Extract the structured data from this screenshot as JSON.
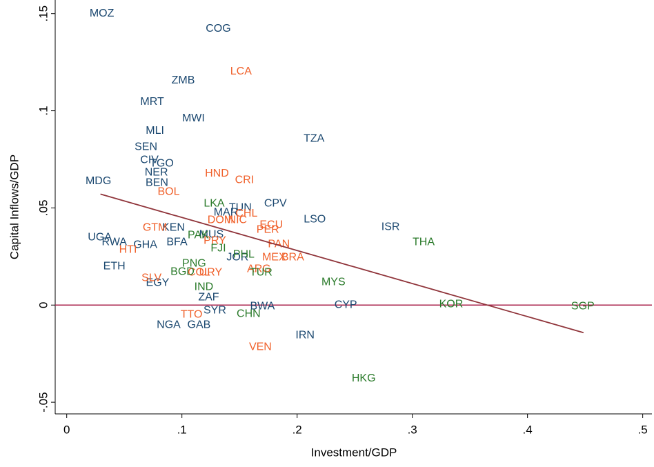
{
  "chart_data": {
    "type": "scatter",
    "x_label": "Investment/GDP",
    "y_label": "Capital Inflows/GDP",
    "xlim": [
      -0.01,
      0.508
    ],
    "ylim": [
      -0.056,
      0.157
    ],
    "xticks": [
      0,
      {
        "value": 0.1,
        "label": ".1"
      },
      {
        "value": 0.2,
        "label": ".2"
      },
      {
        "value": 0.3,
        "label": ".3"
      },
      {
        "value": 0.4,
        "label": ".4"
      },
      {
        "value": 0.5,
        "label": ".5"
      }
    ],
    "yticks": [
      {
        "value": -0.05,
        "label": "-.05"
      },
      0,
      {
        "value": 0.05,
        "label": ".05"
      },
      {
        "value": 0.1,
        "label": ".1"
      },
      {
        "value": 0.15,
        "label": ".15"
      }
    ],
    "series": [
      {
        "color": "#1a476f",
        "labels": [
          "MOZ",
          "COG",
          "ZMB",
          "MRT",
          "MWI",
          "MLI",
          "TZA",
          "SEN",
          "CIV",
          "TGO",
          "NER",
          "BEN",
          "MDG",
          "CPV",
          "MAR",
          "TUN",
          "LSO",
          "ISR",
          "KEN",
          "MUS",
          "UGA",
          "RWA",
          "GHA",
          "BFA",
          "JOR",
          "ETH",
          "EGY",
          "ZAF",
          "BWA",
          "CYP",
          "SYR",
          "NGA",
          "GAB",
          "IRN"
        ],
        "x": [
          0.0305,
          0.1316,
          0.1011,
          0.0742,
          0.11,
          0.0766,
          0.2147,
          0.0688,
          0.0718,
          0.0825,
          0.0778,
          0.0783,
          0.0275,
          0.1812,
          0.1382,
          0.1507,
          0.2153,
          0.2811,
          0.0927,
          0.1256,
          0.0287,
          0.0413,
          0.0682,
          0.0957,
          0.1483,
          0.0413,
          0.0789,
          0.1232,
          0.1699,
          0.2422,
          0.1286,
          0.0885,
          0.1148,
          0.2069
        ],
        "y": [
          0.15,
          0.1422,
          0.1156,
          0.1046,
          0.0961,
          0.0897,
          0.0855,
          0.0812,
          0.0745,
          0.0727,
          0.0681,
          0.0628,
          0.0638,
          0.0521,
          0.0475,
          0.05,
          0.044,
          0.0401,
          0.0397,
          0.0362,
          0.0348,
          0.0323,
          0.0309,
          0.0323,
          0.0245,
          0.0199,
          0.0113,
          0.0039,
          -0.0007,
          0,
          -0.0028,
          -0.0103,
          -0.0103,
          -0.0156
        ]
      },
      {
        "color": "#f0602a",
        "labels": [
          "LCA",
          "HND",
          "CRI",
          "BOL",
          "DOM",
          "NIC",
          "CHL",
          "ECU",
          "PER",
          "GTM",
          "HTI",
          "PRY",
          "PAN",
          "MEX",
          "BRA",
          "ARG",
          "SLV",
          "COL",
          "URY",
          "TTO",
          "VEN"
        ],
        "x": [
          0.1513,
          0.1304,
          0.1543,
          0.0885,
          0.1334,
          0.1483,
          0.1561,
          0.1776,
          0.1746,
          0.0766,
          0.0532,
          0.1286,
          0.1842,
          0.18,
          0.1962,
          0.1669,
          0.0736,
          0.1148,
          0.125,
          0.1083,
          0.1681
        ],
        "y": [
          0.1202,
          0.0677,
          0.0642,
          0.0582,
          0.0436,
          0.0436,
          0.047,
          0.0411,
          0.0387,
          0.0397,
          0.0284,
          0.033,
          0.0312,
          0.0245,
          0.0245,
          0.0184,
          0.0138,
          0.0167,
          0.0167,
          -0.005,
          -0.0216
        ]
      },
      {
        "color": "#2a7a2a",
        "labels": [
          "LKA",
          "THA",
          "PAK",
          "FJI",
          "PHL",
          "PNG",
          "BGD",
          "TUR",
          "MYS",
          "IND",
          "CHN",
          "KOR",
          "SGP",
          "HKG"
        ],
        "x": [
          0.128,
          0.3098,
          0.1142,
          0.1316,
          0.1537,
          0.1106,
          0.1005,
          0.1687,
          0.2315,
          0.119,
          0.1579,
          0.3337,
          0.448,
          0.2578
        ],
        "y": [
          0.0521,
          0.0323,
          0.0358,
          0.0291,
          0.0259,
          0.0213,
          0.017,
          0.0167,
          0.0117,
          0.0092,
          -0.0046,
          0.0004,
          -0.0007,
          -0.0379
        ]
      }
    ],
    "fit_line": {
      "color": "#90353b",
      "x": [
        0.0293,
        0.4486
      ],
      "y": [
        0.0571,
        -0.0142
      ]
    },
    "hline": {
      "color": "#a8204a",
      "y": 0
    }
  }
}
